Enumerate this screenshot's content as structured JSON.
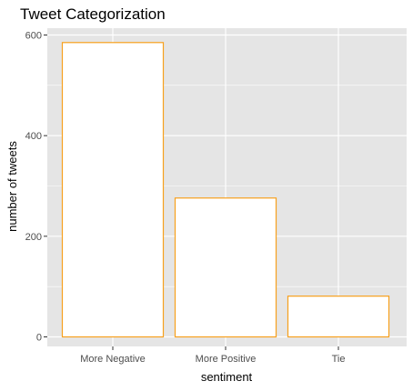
{
  "chart_data": {
    "type": "bar",
    "title": "Tweet Categorization",
    "xlabel": "sentiment",
    "ylabel": "number of tweets",
    "categories": [
      "More Negative",
      "More Positive",
      "Tie"
    ],
    "values": [
      585,
      276,
      81
    ],
    "ylim": [
      0,
      600
    ],
    "yticks": [
      0,
      200,
      400,
      600
    ],
    "ytick_labels": [
      "0",
      "200",
      "400",
      "600"
    ],
    "grid": true,
    "legend": "none"
  },
  "colors": {
    "panel_background": "#e5e5e5",
    "grid_line": "#ffffff",
    "bar_fill": "#ffffff",
    "bar_outline": "#f7a01d",
    "tick_color": "#333333",
    "tick_label_color": "#4d4d4d"
  }
}
